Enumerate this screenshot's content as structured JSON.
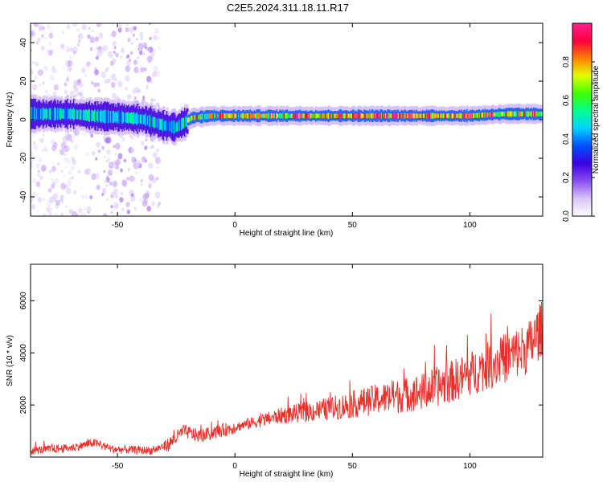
{
  "title": "C2E5.2024.311.18.11.R17",
  "chart_data": [
    {
      "type": "heatmap",
      "xlabel": "Height of straight line (km)",
      "ylabel": "Frequency (Hz)",
      "xlim": [
        -87,
        131
      ],
      "ylim": [
        -50,
        50
      ],
      "xticks": [
        -50,
        0,
        50,
        100
      ],
      "yticks": [
        -40,
        -20,
        0,
        20,
        40
      ],
      "colorbar": {
        "label": "Normalized spectral amplitude",
        "range": [
          0,
          1
        ],
        "ticks": [
          0.0,
          0.2,
          0.4,
          0.6,
          0.8
        ],
        "colors": [
          "#ffffff",
          "#d9c4f5",
          "#8a4ef0",
          "#3b00e0",
          "#0050ff",
          "#00d0ff",
          "#00ff90",
          "#40ff00",
          "#e0ff00",
          "#ff8000",
          "#ff0040",
          "#ff2090"
        ]
      },
      "ridge": [
        {
          "x": -87,
          "y": 3
        },
        {
          "x": -70,
          "y": 3
        },
        {
          "x": -60,
          "y": 2
        },
        {
          "x": -45,
          "y": 1
        },
        {
          "x": -38,
          "y": 0
        },
        {
          "x": -30,
          "y": -3
        },
        {
          "x": -25,
          "y": -4
        },
        {
          "x": -18,
          "y": 1
        },
        {
          "x": -10,
          "y": 2
        },
        {
          "x": 0,
          "y": 2
        },
        {
          "x": 25,
          "y": 2
        },
        {
          "x": 50,
          "y": 2
        },
        {
          "x": 75,
          "y": 2
        },
        {
          "x": 100,
          "y": 2
        },
        {
          "x": 115,
          "y": 3
        },
        {
          "x": 131,
          "y": 3
        }
      ],
      "grid": false
    },
    {
      "type": "line",
      "xlabel": "Height of straight line (km)",
      "ylabel": "SNR (10 * v/v)",
      "xlim": [
        -87,
        131
      ],
      "ylim": [
        0,
        7400
      ],
      "xticks": [
        -50,
        0,
        50,
        100
      ],
      "yticks": [
        2000,
        4000,
        6000
      ],
      "color": "#e8302a",
      "trend": [
        {
          "x": -87,
          "y": 250
        },
        {
          "x": -70,
          "y": 350
        },
        {
          "x": -60,
          "y": 550
        },
        {
          "x": -52,
          "y": 300
        },
        {
          "x": -35,
          "y": 250
        },
        {
          "x": -28,
          "y": 500
        },
        {
          "x": -22,
          "y": 1000
        },
        {
          "x": -15,
          "y": 800
        },
        {
          "x": 0,
          "y": 1150
        },
        {
          "x": 20,
          "y": 1600
        },
        {
          "x": 40,
          "y": 1850
        },
        {
          "x": 60,
          "y": 2200
        },
        {
          "x": 80,
          "y": 2500
        },
        {
          "x": 95,
          "y": 3000
        },
        {
          "x": 110,
          "y": 3600
        },
        {
          "x": 125,
          "y": 4200
        },
        {
          "x": 131,
          "y": 5000
        }
      ],
      "grid": false
    }
  ]
}
